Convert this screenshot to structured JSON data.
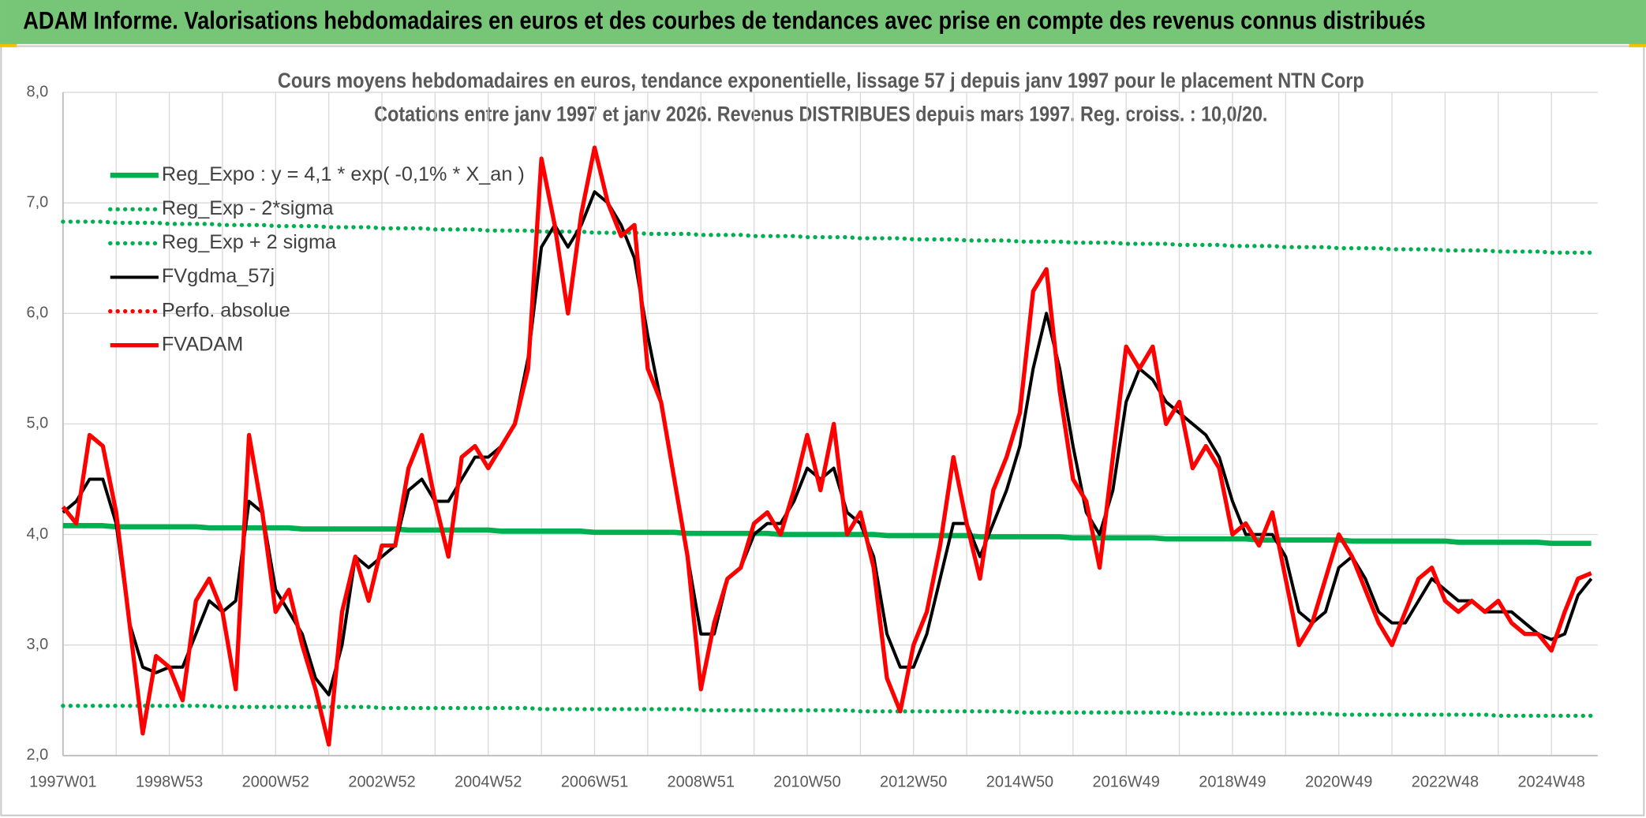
{
  "header": {
    "title": "ADAM Informe. Valorisations hebdomadaires en euros et des courbes de tendances avec prise en compte des revenus connus distribués"
  },
  "chart_data": {
    "type": "line",
    "title": "Cours moyens hebdomadaires en euros, tendance exponentielle, lissage 57 j depuis janv 1997 pour le placement NTN Corp",
    "subtitle": "Cotations entre janv 1997 et janv 2026. Revenus DISTRIBUES depuis mars 1997. Reg. croiss. : 10,0/20.",
    "legend": "upper left",
    "grid": true,
    "ylim": [
      2,
      8
    ],
    "yticks": [
      {
        "value": 2,
        "label": "2,0"
      },
      {
        "value": 3,
        "label": "3,0"
      },
      {
        "value": 4,
        "label": "4,0"
      },
      {
        "value": 5,
        "label": "5,0"
      },
      {
        "value": 6,
        "label": "6,0"
      },
      {
        "value": 7,
        "label": "7,0"
      },
      {
        "value": 8,
        "label": "8,0"
      }
    ],
    "categories": [
      "1997W01",
      null,
      null,
      null,
      null,
      null,
      null,
      null,
      "1998W53",
      null,
      null,
      null,
      null,
      null,
      null,
      null,
      "2000W52",
      null,
      null,
      null,
      null,
      null,
      null,
      null,
      "2002W52",
      null,
      null,
      null,
      null,
      null,
      null,
      null,
      "2004W52",
      null,
      null,
      null,
      null,
      null,
      null,
      null,
      "2006W51",
      null,
      null,
      null,
      null,
      null,
      null,
      null,
      "2008W51",
      null,
      null,
      null,
      null,
      null,
      null,
      null,
      "2010W50",
      null,
      null,
      null,
      null,
      null,
      null,
      null,
      "2012W50",
      null,
      null,
      null,
      null,
      null,
      null,
      null,
      "2014W50",
      null,
      null,
      null,
      null,
      null,
      null,
      null,
      "2016W49",
      null,
      null,
      null,
      null,
      null,
      null,
      null,
      "2018W49",
      null,
      null,
      null,
      null,
      null,
      null,
      null,
      "2020W49",
      null,
      null,
      null,
      null,
      null,
      null,
      null,
      "2022W48",
      null,
      null,
      null,
      null,
      null,
      null,
      null,
      "2024W48",
      null,
      null,
      null
    ],
    "series": [
      {
        "name": "Reg_Expo : y = 4,1 * exp( -0,1% *  X_an )",
        "color": "#00b050",
        "style": "solid",
        "values": [
          4.08,
          4.08,
          4.08,
          4.08,
          4.07,
          4.07,
          4.07,
          4.07,
          4.07,
          4.07,
          4.07,
          4.06,
          4.06,
          4.06,
          4.06,
          4.06,
          4.06,
          4.06,
          4.05,
          4.05,
          4.05,
          4.05,
          4.05,
          4.05,
          4.05,
          4.05,
          4.04,
          4.04,
          4.04,
          4.04,
          4.04,
          4.04,
          4.04,
          4.03,
          4.03,
          4.03,
          4.03,
          4.03,
          4.03,
          4.03,
          4.02,
          4.02,
          4.02,
          4.02,
          4.02,
          4.02,
          4.02,
          4.01,
          4.01,
          4.01,
          4.01,
          4.01,
          4.01,
          4.01,
          4.0,
          4.0,
          4.0,
          4.0,
          4.0,
          4.0,
          4.0,
          4.0,
          3.99,
          3.99,
          3.99,
          3.99,
          3.99,
          3.99,
          3.99,
          3.98,
          3.98,
          3.98,
          3.98,
          3.98,
          3.98,
          3.98,
          3.97,
          3.97,
          3.97,
          3.97,
          3.97,
          3.97,
          3.97,
          3.96,
          3.96,
          3.96,
          3.96,
          3.96,
          3.96,
          3.96,
          3.95,
          3.95,
          3.95,
          3.95,
          3.95,
          3.95,
          3.95,
          3.94,
          3.94,
          3.94,
          3.94,
          3.94,
          3.94,
          3.94,
          3.94,
          3.93,
          3.93,
          3.93,
          3.93,
          3.93,
          3.93,
          3.93,
          3.92,
          3.92,
          3.92,
          3.92
        ]
      },
      {
        "name": "Reg_Exp - 2*sigma",
        "color": "#00b050",
        "style": "dotted",
        "values": [
          2.45,
          2.45,
          2.45,
          2.45,
          2.45,
          2.45,
          2.45,
          2.45,
          2.45,
          2.45,
          2.45,
          2.45,
          2.44,
          2.44,
          2.44,
          2.44,
          2.44,
          2.44,
          2.44,
          2.44,
          2.44,
          2.44,
          2.44,
          2.44,
          2.43,
          2.43,
          2.43,
          2.43,
          2.43,
          2.43,
          2.43,
          2.43,
          2.43,
          2.43,
          2.43,
          2.43,
          2.42,
          2.42,
          2.42,
          2.42,
          2.42,
          2.42,
          2.42,
          2.42,
          2.42,
          2.42,
          2.42,
          2.42,
          2.41,
          2.41,
          2.41,
          2.41,
          2.41,
          2.41,
          2.41,
          2.41,
          2.41,
          2.41,
          2.41,
          2.41,
          2.4,
          2.4,
          2.4,
          2.4,
          2.4,
          2.4,
          2.4,
          2.4,
          2.4,
          2.4,
          2.4,
          2.4,
          2.39,
          2.39,
          2.39,
          2.39,
          2.39,
          2.39,
          2.39,
          2.39,
          2.39,
          2.39,
          2.39,
          2.39,
          2.38,
          2.38,
          2.38,
          2.38,
          2.38,
          2.38,
          2.38,
          2.38,
          2.38,
          2.38,
          2.38,
          2.38,
          2.37,
          2.37,
          2.37,
          2.37,
          2.37,
          2.37,
          2.37,
          2.37,
          2.37,
          2.37,
          2.37,
          2.37,
          2.36,
          2.36,
          2.36,
          2.36,
          2.36,
          2.36,
          2.36,
          2.36
        ]
      },
      {
        "name": "Reg_Exp + 2 sigma",
        "color": "#00b050",
        "style": "dotted",
        "values": [
          6.83,
          6.83,
          6.83,
          6.83,
          6.82,
          6.82,
          6.82,
          6.82,
          6.81,
          6.81,
          6.81,
          6.81,
          6.8,
          6.8,
          6.8,
          6.8,
          6.79,
          6.79,
          6.79,
          6.79,
          6.78,
          6.78,
          6.78,
          6.78,
          6.77,
          6.77,
          6.77,
          6.77,
          6.76,
          6.76,
          6.76,
          6.76,
          6.75,
          6.75,
          6.75,
          6.75,
          6.74,
          6.74,
          6.74,
          6.74,
          6.73,
          6.73,
          6.73,
          6.73,
          6.72,
          6.72,
          6.72,
          6.72,
          6.71,
          6.71,
          6.71,
          6.71,
          6.7,
          6.7,
          6.7,
          6.7,
          6.69,
          6.69,
          6.69,
          6.69,
          6.68,
          6.68,
          6.68,
          6.68,
          6.67,
          6.67,
          6.67,
          6.67,
          6.66,
          6.66,
          6.66,
          6.66,
          6.65,
          6.65,
          6.65,
          6.65,
          6.64,
          6.64,
          6.64,
          6.64,
          6.63,
          6.63,
          6.63,
          6.63,
          6.62,
          6.62,
          6.62,
          6.62,
          6.61,
          6.61,
          6.61,
          6.61,
          6.6,
          6.6,
          6.6,
          6.6,
          6.59,
          6.59,
          6.59,
          6.59,
          6.58,
          6.58,
          6.58,
          6.58,
          6.57,
          6.57,
          6.57,
          6.57,
          6.56,
          6.56,
          6.56,
          6.56,
          6.55,
          6.55,
          6.55,
          6.55
        ]
      },
      {
        "name": "FVgdma_57j",
        "color": "#000000",
        "style": "solid",
        "values": [
          4.2,
          4.3,
          4.5,
          4.5,
          4.1,
          3.2,
          2.8,
          2.75,
          2.8,
          2.8,
          3.1,
          3.4,
          3.3,
          3.4,
          4.3,
          4.2,
          3.5,
          3.3,
          3.1,
          2.7,
          2.55,
          3.0,
          3.8,
          3.7,
          3.8,
          3.9,
          4.4,
          4.5,
          4.3,
          4.3,
          4.5,
          4.7,
          4.7,
          4.8,
          5.0,
          5.6,
          6.6,
          6.8,
          6.6,
          6.8,
          7.1,
          7.0,
          6.8,
          6.5,
          5.8,
          5.2,
          4.5,
          3.8,
          3.1,
          3.1,
          3.6,
          3.7,
          4.0,
          4.1,
          4.1,
          4.3,
          4.6,
          4.5,
          4.6,
          4.2,
          4.1,
          3.8,
          3.1,
          2.8,
          2.8,
          3.1,
          3.6,
          4.1,
          4.1,
          3.8,
          4.1,
          4.4,
          4.8,
          5.5,
          6.0,
          5.5,
          4.8,
          4.2,
          4.0,
          4.4,
          5.2,
          5.5,
          5.4,
          5.2,
          5.1,
          5.0,
          4.9,
          4.7,
          4.3,
          4.0,
          4.0,
          4.0,
          3.8,
          3.3,
          3.2,
          3.3,
          3.7,
          3.8,
          3.6,
          3.3,
          3.2,
          3.2,
          3.4,
          3.6,
          3.5,
          3.4,
          3.4,
          3.3,
          3.3,
          3.3,
          3.2,
          3.1,
          3.05,
          3.1,
          3.45,
          3.6
        ]
      },
      {
        "name": "Perfo. absolue",
        "color": "#ff0000",
        "style": "dotted",
        "values": [
          null,
          null,
          null,
          null,
          null,
          null,
          null,
          null,
          null,
          null,
          null,
          null,
          null,
          null,
          null,
          null,
          null,
          null,
          null,
          null,
          null,
          null,
          null,
          null,
          null,
          null,
          null,
          null,
          null,
          null,
          null,
          null,
          null,
          null,
          null,
          null,
          null,
          null,
          null,
          null,
          null,
          null,
          null,
          null,
          null,
          null,
          null,
          null,
          null,
          null,
          null,
          null,
          null,
          null,
          null,
          null,
          null,
          null,
          null,
          null,
          null,
          null,
          null,
          null,
          null,
          null,
          null,
          null,
          null,
          null,
          null,
          null,
          null,
          null,
          null,
          null,
          null,
          null,
          null,
          null,
          null,
          null,
          null,
          null,
          null,
          null,
          null,
          null,
          null,
          null,
          null,
          null,
          null,
          null,
          null,
          null,
          null,
          null,
          null,
          null,
          null,
          null,
          null,
          null,
          null,
          null,
          null,
          null,
          null,
          null,
          null,
          null,
          null,
          null,
          null,
          null
        ]
      },
      {
        "name": "FVADAM",
        "color": "#ff0000",
        "style": "solid",
        "values": [
          4.25,
          4.1,
          4.9,
          4.8,
          4.2,
          3.2,
          2.2,
          2.9,
          2.8,
          2.5,
          3.4,
          3.6,
          3.3,
          2.6,
          4.9,
          4.2,
          3.3,
          3.5,
          3.0,
          2.6,
          2.1,
          3.3,
          3.8,
          3.4,
          3.9,
          3.9,
          4.6,
          4.9,
          4.3,
          3.8,
          4.7,
          4.8,
          4.6,
          4.8,
          5.0,
          5.5,
          7.4,
          6.8,
          6.0,
          6.9,
          7.5,
          7.0,
          6.7,
          6.8,
          5.5,
          5.2,
          4.5,
          3.8,
          2.6,
          3.2,
          3.6,
          3.7,
          4.1,
          4.2,
          4.0,
          4.4,
          4.9,
          4.4,
          5.0,
          4.0,
          4.2,
          3.7,
          2.7,
          2.4,
          3.0,
          3.3,
          3.9,
          4.7,
          4.1,
          3.6,
          4.4,
          4.7,
          5.1,
          6.2,
          6.4,
          5.3,
          4.5,
          4.3,
          3.7,
          4.7,
          5.7,
          5.5,
          5.7,
          5.0,
          5.2,
          4.6,
          4.8,
          4.6,
          4.0,
          4.1,
          3.9,
          4.2,
          3.6,
          3.0,
          3.2,
          3.6,
          4.0,
          3.8,
          3.5,
          3.2,
          3.0,
          3.3,
          3.6,
          3.7,
          3.4,
          3.3,
          3.4,
          3.3,
          3.4,
          3.2,
          3.1,
          3.1,
          2.95,
          3.3,
          3.6,
          3.65
        ]
      }
    ]
  }
}
